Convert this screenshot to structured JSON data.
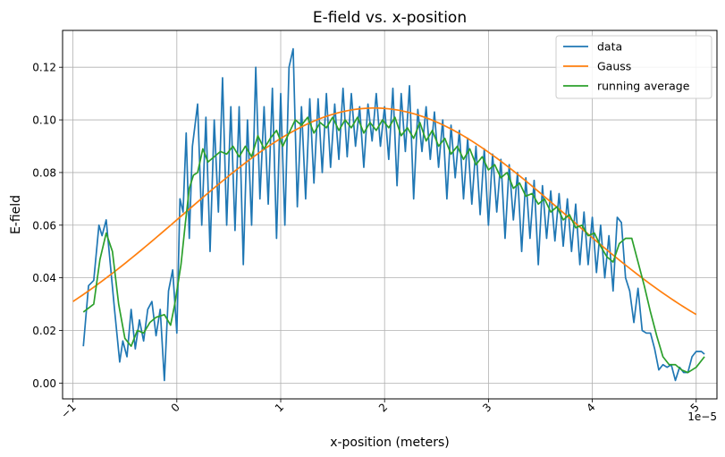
{
  "chart_data": {
    "type": "line",
    "title": "E-field vs. x-position",
    "xlabel": "x-position (meters)",
    "ylabel": "E-field",
    "x_offset_text": "1e−5",
    "xlim": [
      -1.1,
      5.2
    ],
    "ylim": [
      -0.006,
      0.134
    ],
    "x_ticks": [
      -1,
      0,
      1,
      2,
      3,
      4,
      5
    ],
    "x_tick_labels": [
      "−1",
      "0",
      "1",
      "2",
      "3",
      "4",
      "5"
    ],
    "y_ticks": [
      0.0,
      0.02,
      0.04,
      0.06,
      0.08,
      0.1,
      0.12
    ],
    "y_tick_labels": [
      "0.00",
      "0.02",
      "0.04",
      "0.06",
      "0.08",
      "0.10",
      "0.12"
    ],
    "x_tick_rotation": 45,
    "grid": true,
    "legend_position": "top-right",
    "series": [
      {
        "name": "data",
        "color": "#1f77b4",
        "points": [
          [
            -0.9,
            0.014
          ],
          [
            -0.85,
            0.037
          ],
          [
            -0.8,
            0.039
          ],
          [
            -0.75,
            0.06
          ],
          [
            -0.72,
            0.056
          ],
          [
            -0.68,
            0.062
          ],
          [
            -0.64,
            0.045
          ],
          [
            -0.6,
            0.028
          ],
          [
            -0.55,
            0.008
          ],
          [
            -0.52,
            0.016
          ],
          [
            -0.48,
            0.01
          ],
          [
            -0.44,
            0.028
          ],
          [
            -0.4,
            0.013
          ],
          [
            -0.36,
            0.024
          ],
          [
            -0.32,
            0.016
          ],
          [
            -0.28,
            0.028
          ],
          [
            -0.24,
            0.031
          ],
          [
            -0.2,
            0.018
          ],
          [
            -0.16,
            0.028
          ],
          [
            -0.12,
            0.001
          ],
          [
            -0.08,
            0.035
          ],
          [
            -0.04,
            0.043
          ],
          [
            0.0,
            0.019
          ],
          [
            0.03,
            0.07
          ],
          [
            0.06,
            0.065
          ],
          [
            0.09,
            0.095
          ],
          [
            0.12,
            0.055
          ],
          [
            0.15,
            0.09
          ],
          [
            0.2,
            0.106
          ],
          [
            0.24,
            0.06
          ],
          [
            0.28,
            0.101
          ],
          [
            0.32,
            0.05
          ],
          [
            0.36,
            0.1
          ],
          [
            0.4,
            0.065
          ],
          [
            0.44,
            0.116
          ],
          [
            0.48,
            0.06
          ],
          [
            0.52,
            0.105
          ],
          [
            0.56,
            0.058
          ],
          [
            0.6,
            0.105
          ],
          [
            0.64,
            0.045
          ],
          [
            0.68,
            0.1
          ],
          [
            0.72,
            0.06
          ],
          [
            0.76,
            0.12
          ],
          [
            0.8,
            0.07
          ],
          [
            0.84,
            0.105
          ],
          [
            0.88,
            0.068
          ],
          [
            0.92,
            0.112
          ],
          [
            0.96,
            0.055
          ],
          [
            1.0,
            0.11
          ],
          [
            1.04,
            0.06
          ],
          [
            1.08,
            0.12
          ],
          [
            1.12,
            0.127
          ],
          [
            1.16,
            0.067
          ],
          [
            1.2,
            0.105
          ],
          [
            1.24,
            0.07
          ],
          [
            1.28,
            0.108
          ],
          [
            1.32,
            0.076
          ],
          [
            1.36,
            0.108
          ],
          [
            1.4,
            0.08
          ],
          [
            1.44,
            0.11
          ],
          [
            1.48,
            0.082
          ],
          [
            1.52,
            0.106
          ],
          [
            1.56,
            0.085
          ],
          [
            1.6,
            0.112
          ],
          [
            1.64,
            0.086
          ],
          [
            1.68,
            0.11
          ],
          [
            1.72,
            0.09
          ],
          [
            1.76,
            0.105
          ],
          [
            1.8,
            0.082
          ],
          [
            1.84,
            0.106
          ],
          [
            1.88,
            0.092
          ],
          [
            1.92,
            0.11
          ],
          [
            1.96,
            0.09
          ],
          [
            2.0,
            0.105
          ],
          [
            2.04,
            0.085
          ],
          [
            2.08,
            0.112
          ],
          [
            2.12,
            0.075
          ],
          [
            2.16,
            0.11
          ],
          [
            2.2,
            0.088
          ],
          [
            2.24,
            0.113
          ],
          [
            2.28,
            0.07
          ],
          [
            2.32,
            0.104
          ],
          [
            2.36,
            0.088
          ],
          [
            2.4,
            0.105
          ],
          [
            2.44,
            0.085
          ],
          [
            2.48,
            0.103
          ],
          [
            2.52,
            0.082
          ],
          [
            2.56,
            0.1
          ],
          [
            2.6,
            0.07
          ],
          [
            2.64,
            0.098
          ],
          [
            2.68,
            0.078
          ],
          [
            2.72,
            0.096
          ],
          [
            2.76,
            0.07
          ],
          [
            2.8,
            0.093
          ],
          [
            2.84,
            0.068
          ],
          [
            2.88,
            0.09
          ],
          [
            2.92,
            0.064
          ],
          [
            2.96,
            0.089
          ],
          [
            3.0,
            0.06
          ],
          [
            3.04,
            0.087
          ],
          [
            3.08,
            0.065
          ],
          [
            3.12,
            0.085
          ],
          [
            3.16,
            0.055
          ],
          [
            3.2,
            0.083
          ],
          [
            3.24,
            0.062
          ],
          [
            3.28,
            0.08
          ],
          [
            3.32,
            0.05
          ],
          [
            3.36,
            0.078
          ],
          [
            3.4,
            0.055
          ],
          [
            3.44,
            0.077
          ],
          [
            3.48,
            0.045
          ],
          [
            3.52,
            0.075
          ],
          [
            3.56,
            0.055
          ],
          [
            3.6,
            0.073
          ],
          [
            3.64,
            0.054
          ],
          [
            3.68,
            0.072
          ],
          [
            3.72,
            0.052
          ],
          [
            3.76,
            0.07
          ],
          [
            3.8,
            0.05
          ],
          [
            3.84,
            0.068
          ],
          [
            3.88,
            0.045
          ],
          [
            3.92,
            0.065
          ],
          [
            3.96,
            0.045
          ],
          [
            4.0,
            0.063
          ],
          [
            4.04,
            0.042
          ],
          [
            4.08,
            0.06
          ],
          [
            4.12,
            0.04
          ],
          [
            4.16,
            0.056
          ],
          [
            4.2,
            0.035
          ],
          [
            4.24,
            0.063
          ],
          [
            4.28,
            0.061
          ],
          [
            4.32,
            0.04
          ],
          [
            4.36,
            0.035
          ],
          [
            4.4,
            0.023
          ],
          [
            4.44,
            0.036
          ],
          [
            4.48,
            0.02
          ],
          [
            4.52,
            0.019
          ],
          [
            4.56,
            0.019
          ],
          [
            4.6,
            0.013
          ],
          [
            4.64,
            0.005
          ],
          [
            4.68,
            0.007
          ],
          [
            4.72,
            0.006
          ],
          [
            4.76,
            0.007
          ],
          [
            4.8,
            0.001
          ],
          [
            4.84,
            0.006
          ],
          [
            4.88,
            0.004
          ],
          [
            4.92,
            0.004
          ],
          [
            4.96,
            0.01
          ],
          [
            5.0,
            0.012
          ],
          [
            5.05,
            0.012
          ],
          [
            5.08,
            0.011
          ]
        ]
      },
      {
        "name": "Gauss",
        "color": "#ff7f0e",
        "function": "gauss",
        "amplitude": 0.1045,
        "mean": 1.9,
        "sigma": 1.86,
        "x_range": [
          -1.0,
          5.0
        ]
      },
      {
        "name": "running average",
        "color": "#2ca02c",
        "points": [
          [
            -0.9,
            0.027
          ],
          [
            -0.8,
            0.03
          ],
          [
            -0.74,
            0.047
          ],
          [
            -0.68,
            0.057
          ],
          [
            -0.62,
            0.05
          ],
          [
            -0.56,
            0.03
          ],
          [
            -0.5,
            0.017
          ],
          [
            -0.44,
            0.014
          ],
          [
            -0.38,
            0.02
          ],
          [
            -0.32,
            0.019
          ],
          [
            -0.26,
            0.023
          ],
          [
            -0.2,
            0.025
          ],
          [
            -0.12,
            0.026
          ],
          [
            -0.06,
            0.022
          ],
          [
            -0.02,
            0.03
          ],
          [
            0.04,
            0.045
          ],
          [
            0.08,
            0.06
          ],
          [
            0.12,
            0.074
          ],
          [
            0.16,
            0.079
          ],
          [
            0.2,
            0.08
          ],
          [
            0.25,
            0.089
          ],
          [
            0.3,
            0.084
          ],
          [
            0.36,
            0.086
          ],
          [
            0.42,
            0.088
          ],
          [
            0.48,
            0.087
          ],
          [
            0.54,
            0.09
          ],
          [
            0.6,
            0.086
          ],
          [
            0.66,
            0.09
          ],
          [
            0.72,
            0.086
          ],
          [
            0.78,
            0.094
          ],
          [
            0.84,
            0.089
          ],
          [
            0.9,
            0.093
          ],
          [
            0.96,
            0.096
          ],
          [
            1.02,
            0.09
          ],
          [
            1.08,
            0.095
          ],
          [
            1.14,
            0.1
          ],
          [
            1.2,
            0.098
          ],
          [
            1.26,
            0.101
          ],
          [
            1.32,
            0.095
          ],
          [
            1.38,
            0.099
          ],
          [
            1.44,
            0.097
          ],
          [
            1.5,
            0.101
          ],
          [
            1.56,
            0.096
          ],
          [
            1.62,
            0.1
          ],
          [
            1.68,
            0.097
          ],
          [
            1.74,
            0.101
          ],
          [
            1.8,
            0.095
          ],
          [
            1.86,
            0.099
          ],
          [
            1.92,
            0.096
          ],
          [
            1.98,
            0.1
          ],
          [
            2.04,
            0.097
          ],
          [
            2.1,
            0.101
          ],
          [
            2.16,
            0.094
          ],
          [
            2.22,
            0.097
          ],
          [
            2.28,
            0.093
          ],
          [
            2.34,
            0.099
          ],
          [
            2.4,
            0.092
          ],
          [
            2.46,
            0.096
          ],
          [
            2.52,
            0.09
          ],
          [
            2.58,
            0.093
          ],
          [
            2.64,
            0.087
          ],
          [
            2.7,
            0.09
          ],
          [
            2.76,
            0.085
          ],
          [
            2.82,
            0.089
          ],
          [
            2.88,
            0.083
          ],
          [
            2.94,
            0.086
          ],
          [
            3.0,
            0.081
          ],
          [
            3.06,
            0.083
          ],
          [
            3.12,
            0.078
          ],
          [
            3.18,
            0.08
          ],
          [
            3.24,
            0.074
          ],
          [
            3.3,
            0.076
          ],
          [
            3.36,
            0.071
          ],
          [
            3.42,
            0.072
          ],
          [
            3.48,
            0.068
          ],
          [
            3.54,
            0.07
          ],
          [
            3.6,
            0.065
          ],
          [
            3.66,
            0.067
          ],
          [
            3.72,
            0.062
          ],
          [
            3.78,
            0.064
          ],
          [
            3.84,
            0.059
          ],
          [
            3.9,
            0.06
          ],
          [
            3.96,
            0.056
          ],
          [
            4.02,
            0.057
          ],
          [
            4.08,
            0.052
          ],
          [
            4.14,
            0.048
          ],
          [
            4.2,
            0.046
          ],
          [
            4.26,
            0.053
          ],
          [
            4.32,
            0.055
          ],
          [
            4.38,
            0.055
          ],
          [
            4.44,
            0.046
          ],
          [
            4.5,
            0.037
          ],
          [
            4.56,
            0.027
          ],
          [
            4.62,
            0.018
          ],
          [
            4.68,
            0.01
          ],
          [
            4.74,
            0.007
          ],
          [
            4.8,
            0.007
          ],
          [
            4.86,
            0.005
          ],
          [
            4.92,
            0.004
          ],
          [
            5.0,
            0.006
          ],
          [
            5.08,
            0.01
          ]
        ]
      }
    ]
  }
}
